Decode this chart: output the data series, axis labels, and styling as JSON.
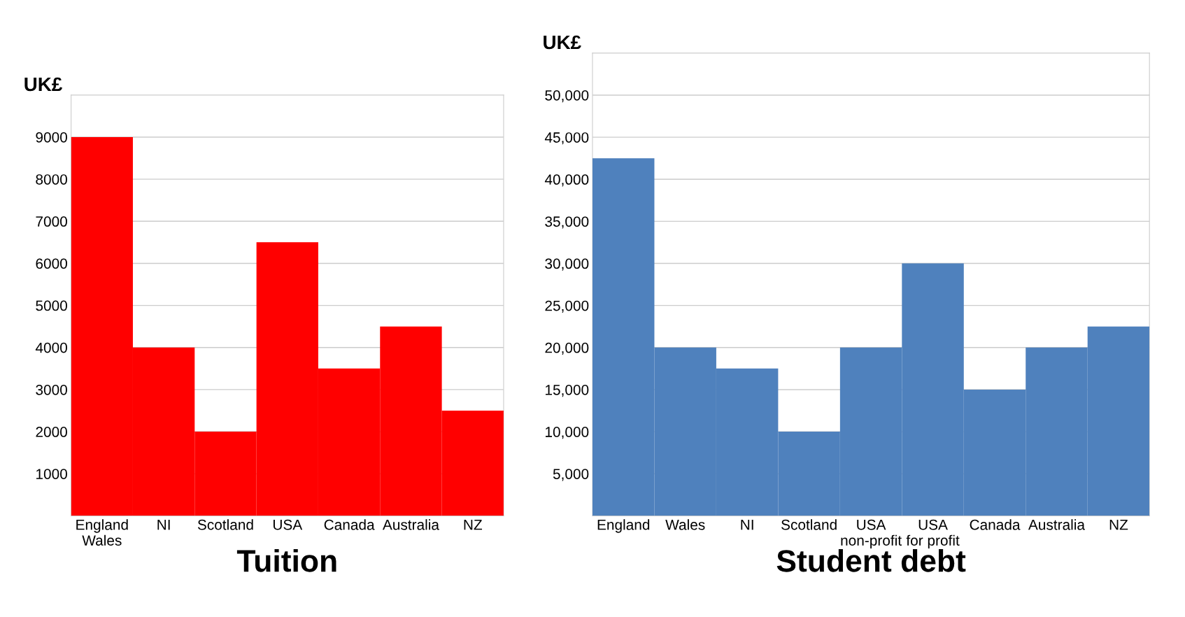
{
  "chart_data": [
    {
      "type": "bar",
      "title": "Tuition",
      "ylabel": "UK£",
      "categories": [
        "England\nWales",
        "NI",
        "Scotland",
        "USA",
        "Canada",
        "Australia",
        "NZ"
      ],
      "series": [
        {
          "color": "#ff0000",
          "values": [
            9000,
            4000,
            2000,
            6500,
            3500,
            4500,
            2500
          ]
        }
      ],
      "ylim": [
        0,
        10000
      ],
      "yticks": [
        1000,
        2000,
        3000,
        4000,
        5000,
        6000,
        7000,
        8000,
        9000
      ],
      "grid": "y"
    },
    {
      "type": "bar",
      "title": "Student debt",
      "ylabel": "UK£",
      "categories": [
        "England",
        "Wales",
        "NI",
        "Scotland",
        "USA\nnon-profit",
        "USA\nfor profit",
        "Canada",
        "Australia",
        "NZ"
      ],
      "series": [
        {
          "color": "#4f81bd",
          "values": [
            42500,
            20000,
            17500,
            10000,
            20000,
            30000,
            15000,
            20000,
            22500
          ]
        }
      ],
      "ylim": [
        0,
        55000
      ],
      "yticks": [
        {
          "value": 5000,
          "label": "5,000"
        },
        {
          "value": 10000,
          "label": "10,000"
        },
        {
          "value": 15000,
          "label": "15,000"
        },
        {
          "value": 20000,
          "label": "20,000"
        },
        {
          "value": 25000,
          "label": "25,000"
        },
        {
          "value": 30000,
          "label": "30,000"
        },
        {
          "value": 35000,
          "label": "35,000"
        },
        {
          "value": 40000,
          "label": "40,000"
        },
        {
          "value": 45000,
          "label": "45,000"
        },
        {
          "value": 50000,
          "label": "50,000"
        }
      ],
      "grid": "y"
    }
  ]
}
